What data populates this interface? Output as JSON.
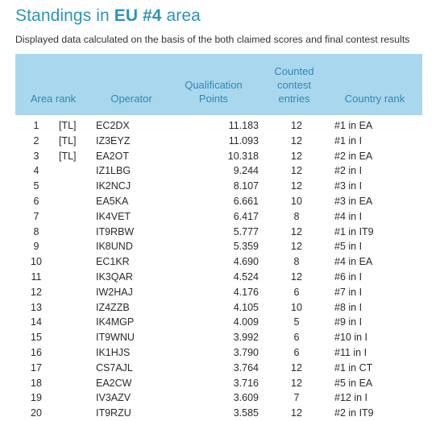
{
  "title": {
    "prefix": "Standings in ",
    "area": "EU #4",
    "suffix": " area"
  },
  "subtitle": "Displayed data calculated on the basis of the both claimed scores and final contest results",
  "colors": {
    "title": "#2e93b8",
    "header_bg": "#a9d7ee",
    "header_text": "#2e8ab2"
  },
  "table": {
    "headers": {
      "area_rank": "Area rank",
      "operator": "Operator",
      "qualification_points": [
        "Qualification",
        "Points"
      ],
      "counted_entries": [
        "Counted",
        "contest",
        "entries"
      ],
      "country_rank": "Country rank"
    },
    "rows": [
      {
        "rank": "1",
        "tag": "[TL]",
        "operator": "EC2DX",
        "points": "11.183",
        "entries": "12",
        "country_rank": "#1 in EA"
      },
      {
        "rank": "2",
        "tag": "[TL]",
        "operator": "IZ3EYZ",
        "points": "11.093",
        "entries": "12",
        "country_rank": "#1 in I"
      },
      {
        "rank": "3",
        "tag": "[TL]",
        "operator": "EA2OT",
        "points": "10.318",
        "entries": "12",
        "country_rank": "#2 in EA"
      },
      {
        "rank": "4",
        "tag": "",
        "operator": "IZ1LBG",
        "points": "9.244",
        "entries": "12",
        "country_rank": "#2 in I"
      },
      {
        "rank": "5",
        "tag": "",
        "operator": "IK2NCJ",
        "points": "8.107",
        "entries": "12",
        "country_rank": "#3 in I"
      },
      {
        "rank": "6",
        "tag": "",
        "operator": "EA5KA",
        "points": "6.661",
        "entries": "10",
        "country_rank": "#3 in EA"
      },
      {
        "rank": "7",
        "tag": "",
        "operator": "IK4VET",
        "points": "6.417",
        "entries": "8",
        "country_rank": "#4 in I"
      },
      {
        "rank": "8",
        "tag": "",
        "operator": "IT9RBW",
        "points": "5.777",
        "entries": "12",
        "country_rank": "#1 in IT9"
      },
      {
        "rank": "9",
        "tag": "",
        "operator": "IK8UND",
        "points": "5.359",
        "entries": "12",
        "country_rank": "#5 in I"
      },
      {
        "rank": "10",
        "tag": "",
        "operator": "EC1KR",
        "points": "4.690",
        "entries": "8",
        "country_rank": "#4 in EA"
      },
      {
        "rank": "11",
        "tag": "",
        "operator": "IK3QAR",
        "points": "4.524",
        "entries": "12",
        "country_rank": "#6 in I"
      },
      {
        "rank": "12",
        "tag": "",
        "operator": "IW2HAJ",
        "points": "4.176",
        "entries": "6",
        "country_rank": "#7 in I"
      },
      {
        "rank": "13",
        "tag": "",
        "operator": "IZ4ZZB",
        "points": "4.105",
        "entries": "10",
        "country_rank": "#8 in I"
      },
      {
        "rank": "14",
        "tag": "",
        "operator": "IK4MGP",
        "points": "4.009",
        "entries": "5",
        "country_rank": "#9 in I"
      },
      {
        "rank": "15",
        "tag": "",
        "operator": "IT9WNU",
        "points": "3.992",
        "entries": "6",
        "country_rank": "#10 in I"
      },
      {
        "rank": "16",
        "tag": "",
        "operator": "IK1HJS",
        "points": "3.790",
        "entries": "6",
        "country_rank": "#11 in I"
      },
      {
        "rank": "17",
        "tag": "",
        "operator": "CS7AJL",
        "points": "3.764",
        "entries": "12",
        "country_rank": "#1 in CT"
      },
      {
        "rank": "18",
        "tag": "",
        "operator": "EA2CW",
        "points": "3.716",
        "entries": "12",
        "country_rank": "#5 in EA"
      },
      {
        "rank": "19",
        "tag": "",
        "operator": "IV3AZV",
        "points": "3.609",
        "entries": "7",
        "country_rank": "#12 in I"
      },
      {
        "rank": "20",
        "tag": "",
        "operator": "IT9RZU",
        "points": "3.585",
        "entries": "12",
        "country_rank": "#2 in IT9"
      }
    ]
  }
}
